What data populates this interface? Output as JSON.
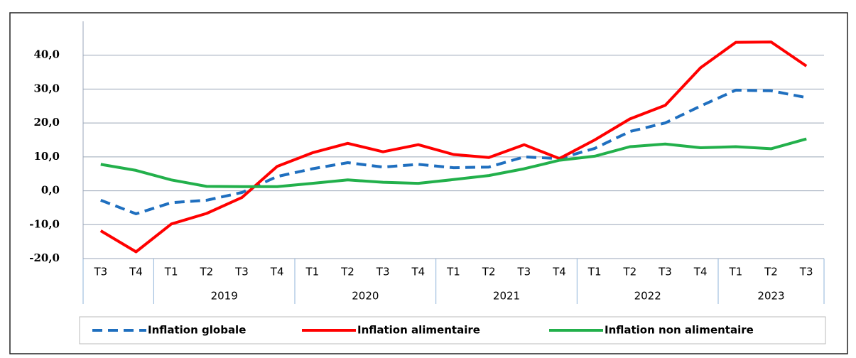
{
  "chart_data": {
    "type": "line",
    "categories": [
      "T3",
      "T4",
      "T1",
      "T2",
      "T3",
      "T4",
      "T1",
      "T2",
      "T3",
      "T4",
      "T1",
      "T2",
      "T3",
      "T4",
      "T1",
      "T2",
      "T3",
      "T4",
      "T1",
      "T2",
      "T3"
    ],
    "groups": [
      {
        "label": null,
        "count": 2
      },
      {
        "label": "2019",
        "count": 4
      },
      {
        "label": "2020",
        "count": 4
      },
      {
        "label": "2021",
        "count": 4
      },
      {
        "label": "2022",
        "count": 4
      },
      {
        "label": "2023",
        "count": 3
      }
    ],
    "series": [
      {
        "name": "Inflation globale",
        "color": "#1f6fbf",
        "dashed": true,
        "values": [
          -2.8,
          -6.8,
          -3.5,
          -2.8,
          -0.5,
          4.2,
          6.5,
          8.3,
          7.0,
          7.8,
          6.8,
          7.0,
          10.0,
          9.5,
          12.5,
          17.5,
          20.0,
          25.0,
          29.7,
          29.5,
          27.5
        ]
      },
      {
        "name": "Inflation alimentaire",
        "color": "#ff0000",
        "dashed": false,
        "values": [
          -11.8,
          -18.0,
          -9.8,
          -6.7,
          -2.0,
          7.2,
          11.2,
          14.0,
          11.5,
          13.6,
          10.7,
          9.8,
          13.6,
          9.5,
          15.0,
          21.2,
          25.2,
          36.3,
          43.8,
          43.9,
          36.8
        ]
      },
      {
        "name": "Inflation non alimentaire",
        "color": "#22b04b",
        "dashed": false,
        "values": [
          7.8,
          6.0,
          3.2,
          1.3,
          1.2,
          1.2,
          2.2,
          3.2,
          2.5,
          2.2,
          3.3,
          4.5,
          6.5,
          9.0,
          10.2,
          13.0,
          13.8,
          12.7,
          13.0,
          12.4,
          15.3
        ]
      }
    ],
    "ylim": [
      -20,
      50
    ],
    "yticks": [
      {
        "value": -20,
        "label": "-20,0"
      },
      {
        "value": -10,
        "label": "-10,0"
      },
      {
        "value": 0,
        "label": "0,0"
      },
      {
        "value": 10,
        "label": "10,0"
      },
      {
        "value": 20,
        "label": "20,0"
      },
      {
        "value": 30,
        "label": "30,0"
      },
      {
        "value": 40,
        "label": "40,0"
      }
    ],
    "grid": true
  }
}
